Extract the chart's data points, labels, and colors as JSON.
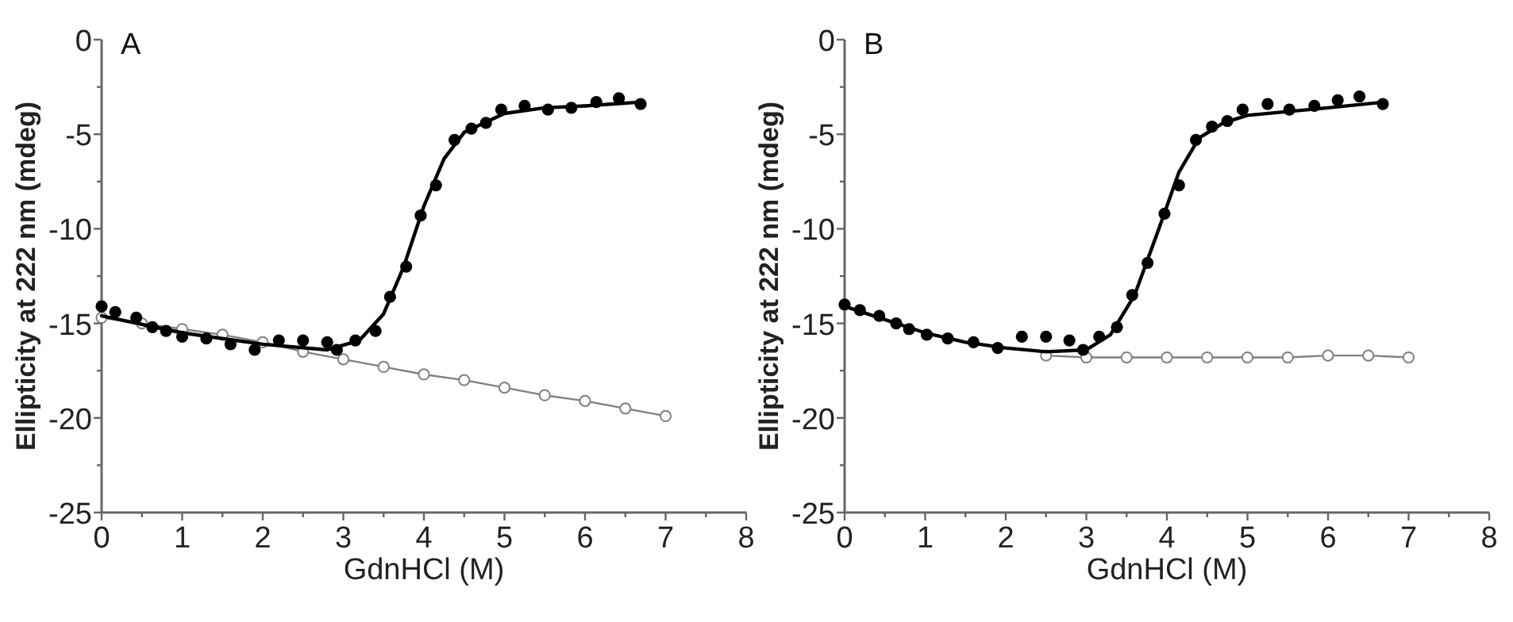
{
  "chart_data": [
    {
      "type": "scatter",
      "title": "A",
      "xlabel": "GdnHCl (M)",
      "ylabel": "Ellipticity at 222 nm (mdeg)",
      "xlim": [
        0,
        8
      ],
      "ylim": [
        -25,
        0
      ],
      "xticks": [
        0,
        {
          "value": 0.5,
          "label": null
        },
        1,
        {
          "value": 1.5,
          "label": null
        },
        2,
        {
          "value": 2.5,
          "label": null
        },
        3,
        {
          "value": 3.5,
          "label": null
        },
        4,
        {
          "value": 4.5,
          "label": null
        },
        5,
        {
          "value": 5.5,
          "label": null
        },
        6,
        {
          "value": 6.5,
          "label": null
        },
        7,
        {
          "value": 7.5,
          "label": null
        },
        8
      ],
      "yticks": [
        -25,
        {
          "value": -22.5,
          "label": null
        },
        -20,
        {
          "value": -17.5,
          "label": null
        },
        -15,
        {
          "value": -12.5,
          "label": null
        },
        -10,
        {
          "value": -7.5,
          "label": null
        },
        -5,
        {
          "value": -2.5,
          "label": null
        },
        0
      ],
      "grid": false,
      "series": [
        {
          "type": "line",
          "color": "#808080",
          "marker": "circle",
          "x": [
            0,
            0.5,
            1,
            1.5,
            2,
            2.5,
            3,
            3.5,
            4,
            4.5,
            5,
            5.5,
            6,
            6.5,
            7
          ],
          "values": [
            -14.7,
            -15.0,
            -15.3,
            -15.6,
            -16.0,
            -16.5,
            -16.9,
            -17.3,
            -17.7,
            -18.0,
            -18.4,
            -18.8,
            -19.1,
            -19.5,
            -19.9
          ]
        },
        {
          "type": "line",
          "color": "#000000",
          "marker": "none",
          "x": [
            0,
            1,
            2,
            2.8,
            3.2,
            3.5,
            3.75,
            4.0,
            4.25,
            4.5,
            5,
            5.5,
            6,
            6.7
          ],
          "values": [
            -14.6,
            -15.5,
            -16.1,
            -16.4,
            -15.9,
            -14.5,
            -12,
            -8.8,
            -6.3,
            -4.9,
            -3.9,
            -3.6,
            -3.5,
            -3.3
          ]
        },
        {
          "color": "#000000",
          "marker": "circle",
          "x": [
            0,
            0.17,
            0.43,
            0.63,
            0.8,
            1.0,
            1.3,
            1.6,
            1.9,
            2.2,
            2.5,
            2.8,
            2.92,
            3.15,
            3.4,
            3.58,
            3.78,
            3.96,
            4.15,
            4.38,
            4.59,
            4.77,
            4.96,
            5.25,
            5.54,
            5.83,
            6.14,
            6.42,
            6.69
          ],
          "values": [
            -14.1,
            -14.4,
            -14.7,
            -15.2,
            -15.4,
            -15.7,
            -15.8,
            -16.1,
            -16.4,
            -15.9,
            -15.9,
            -16.0,
            -16.4,
            -15.9,
            -15.4,
            -13.6,
            -12.0,
            -9.3,
            -7.7,
            -5.3,
            -4.7,
            -4.4,
            -3.7,
            -3.5,
            -3.7,
            -3.6,
            -3.3,
            -3.1,
            -3.4
          ]
        }
      ]
    },
    {
      "type": "scatter",
      "title": "B",
      "xlabel": "GdnHCl (M)",
      "ylabel": "Ellipticity at 222 nm (mdeg)",
      "xlim": [
        0,
        8
      ],
      "ylim": [
        -25,
        0
      ],
      "xticks": [
        0,
        {
          "value": 0.5,
          "label": null
        },
        1,
        {
          "value": 1.5,
          "label": null
        },
        2,
        {
          "value": 2.5,
          "label": null
        },
        3,
        {
          "value": 3.5,
          "label": null
        },
        4,
        {
          "value": 4.5,
          "label": null
        },
        5,
        {
          "value": 5.5,
          "label": null
        },
        6,
        {
          "value": 6.5,
          "label": null
        },
        7,
        {
          "value": 7.5,
          "label": null
        },
        8
      ],
      "yticks": [
        -25,
        {
          "value": -22.5,
          "label": null
        },
        -20,
        {
          "value": -17.5,
          "label": null
        },
        -15,
        {
          "value": -12.5,
          "label": null
        },
        -10,
        {
          "value": -7.5,
          "label": null
        },
        -5,
        {
          "value": -2.5,
          "label": null
        },
        0
      ],
      "grid": false,
      "series": [
        {
          "type": "line",
          "color": "#808080",
          "marker": "circle",
          "x": [
            2.5,
            3,
            3.5,
            4,
            4.5,
            5,
            5.5,
            6,
            6.5,
            7
          ],
          "values": [
            -16.7,
            -16.8,
            -16.8,
            -16.8,
            -16.8,
            -16.8,
            -16.8,
            -16.7,
            -16.7,
            -16.8
          ]
        },
        {
          "type": "line",
          "color": "#000000",
          "marker": "none",
          "x": [
            0,
            0.5,
            1,
            1.5,
            2,
            2.5,
            3.0,
            3.3,
            3.6,
            3.9,
            4.15,
            4.4,
            4.7,
            5,
            5.5,
            6,
            6.7
          ],
          "values": [
            -14.1,
            -14.8,
            -15.5,
            -16.0,
            -16.3,
            -16.5,
            -16.4,
            -15.6,
            -13.5,
            -10,
            -7,
            -5.2,
            -4.4,
            -4.0,
            -3.8,
            -3.6,
            -3.3
          ]
        },
        {
          "color": "#000000",
          "marker": "circle",
          "x": [
            0,
            0.19,
            0.43,
            0.64,
            0.8,
            1.02,
            1.28,
            1.6,
            1.9,
            2.2,
            2.5,
            2.79,
            2.96,
            3.16,
            3.38,
            3.57,
            3.76,
            3.97,
            4.15,
            4.36,
            4.56,
            4.75,
            4.94,
            5.25,
            5.52,
            5.83,
            6.12,
            6.39,
            6.68
          ],
          "values": [
            -14.0,
            -14.3,
            -14.6,
            -15.0,
            -15.3,
            -15.6,
            -15.8,
            -16.0,
            -16.3,
            -15.7,
            -15.7,
            -15.9,
            -16.4,
            -15.7,
            -15.2,
            -13.5,
            -11.8,
            -9.2,
            -7.7,
            -5.3,
            -4.6,
            -4.3,
            -3.7,
            -3.4,
            -3.7,
            -3.5,
            -3.2,
            -3.0,
            -3.4
          ]
        }
      ]
    }
  ]
}
